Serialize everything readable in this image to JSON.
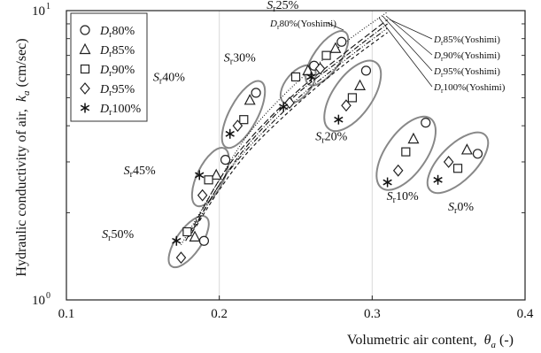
{
  "chart_data": {
    "type": "scatter",
    "xlabel": "Volumetric air content,",
    "xlabel_symbol": "θ",
    "xlabel_sub": "a",
    "xlabel_unit": " (-)",
    "ylabel": "Hydraulic conductivity of air,",
    "ylabel_symbol": "k",
    "ylabel_sub": "a",
    "ylabel_unit": " (cm/sec)",
    "xlim": [
      0.1,
      0.4
    ],
    "ylim": [
      1,
      10
    ],
    "yscale": "log",
    "x_ticks": [
      "0.1",
      "0.2",
      "0.3",
      "0.4"
    ],
    "y_ticks": [
      "10",
      "10"
    ],
    "y_ticks_sup": [
      "0",
      "1"
    ],
    "grid": "vertical",
    "legend_position": "top-left",
    "series": [
      {
        "name": "Dr80%",
        "label_prefix": "D",
        "label_sub": "r",
        "label_suffix": "80%",
        "marker": "circle",
        "points": [
          [
            0.19,
            1.6
          ],
          [
            0.204,
            3.05
          ],
          [
            0.224,
            5.2
          ],
          [
            0.262,
            6.45
          ],
          [
            0.28,
            7.8
          ],
          [
            0.296,
            6.2
          ],
          [
            0.335,
            4.1
          ],
          [
            0.369,
            3.2
          ]
        ]
      },
      {
        "name": "Dr85%",
        "label_prefix": "D",
        "label_sub": "r",
        "label_suffix": "85%",
        "marker": "triangle",
        "points": [
          [
            0.184,
            1.65
          ],
          [
            0.198,
            2.7
          ],
          [
            0.22,
            4.9
          ],
          [
            0.258,
            6.2
          ],
          [
            0.276,
            7.4
          ],
          [
            0.292,
            5.5
          ],
          [
            0.327,
            3.6
          ],
          [
            0.362,
            3.3
          ]
        ]
      },
      {
        "name": "Dr90%",
        "label_prefix": "D",
        "label_sub": "r",
        "label_suffix": "90%",
        "marker": "square",
        "points": [
          [
            0.179,
            1.72
          ],
          [
            0.193,
            2.6
          ],
          [
            0.216,
            4.2
          ],
          [
            0.25,
            5.9
          ],
          [
            0.27,
            7.0
          ],
          [
            0.287,
            5.0
          ],
          [
            0.322,
            3.25
          ],
          [
            0.356,
            2.85
          ]
        ]
      },
      {
        "name": "Dr95%",
        "label_prefix": "D",
        "label_sub": "r",
        "label_suffix": "95%",
        "marker": "diamond",
        "points": [
          [
            0.175,
            1.4
          ],
          [
            0.189,
            2.3
          ],
          [
            0.212,
            4.0
          ],
          [
            0.246,
            4.8
          ],
          [
            0.266,
            6.3
          ],
          [
            0.283,
            4.7
          ],
          [
            0.317,
            2.8
          ],
          [
            0.35,
            3.0
          ]
        ]
      },
      {
        "name": "Dr100%",
        "label_prefix": "D",
        "label_sub": "r",
        "label_suffix": "100%",
        "marker": "asterisk",
        "points": [
          [
            0.172,
            1.6
          ],
          [
            0.187,
            2.7
          ],
          [
            0.207,
            3.75
          ],
          [
            0.242,
            4.65
          ],
          [
            0.26,
            5.9
          ],
          [
            0.278,
            4.2
          ],
          [
            0.31,
            2.55
          ],
          [
            0.343,
            2.6
          ]
        ]
      }
    ],
    "groups": [
      {
        "label": "Sr50%",
        "label_prefix": "S",
        "label_sub": "r",
        "label_suffix": "50%"
      },
      {
        "label": "Sr45%",
        "label_prefix": "S",
        "label_sub": "r",
        "label_suffix": "45%"
      },
      {
        "label": "Sr40%",
        "label_prefix": "S",
        "label_sub": "r",
        "label_suffix": "40%"
      },
      {
        "label": "Sr30%",
        "label_prefix": "S",
        "label_sub": "r",
        "label_suffix": "30%"
      },
      {
        "label": "Sr25%",
        "label_prefix": "S",
        "label_sub": "r",
        "label_suffix": "25%"
      },
      {
        "label": "Sr20%",
        "label_prefix": "S",
        "label_sub": "r",
        "label_suffix": "20%"
      },
      {
        "label": "Sr10%",
        "label_prefix": "S",
        "label_sub": "r",
        "label_suffix": "10%"
      },
      {
        "label": "Sr0%",
        "label_prefix": "S",
        "label_sub": "r",
        "label_suffix": "0%"
      }
    ],
    "yoshimi_curves": [
      {
        "name": "Dr80%(Yoshimi)",
        "label_prefix": "D",
        "label_sub": "r",
        "label_suffix": "80%(Yoshimi)",
        "dash": "1,2",
        "points": [
          [
            0.175,
            1.55
          ],
          [
            0.2,
            2.6
          ],
          [
            0.22,
            3.8
          ],
          [
            0.25,
            5.6
          ],
          [
            0.28,
            7.6
          ],
          [
            0.31,
            9.9
          ]
        ]
      },
      {
        "name": "Dr85%(Yoshimi)",
        "label_prefix": "D",
        "label_sub": "r",
        "label_suffix": "85%(Yoshimi)",
        "dash": "7,3",
        "points": [
          [
            0.178,
            1.6
          ],
          [
            0.2,
            2.6
          ],
          [
            0.22,
            3.6
          ],
          [
            0.25,
            5.2
          ],
          [
            0.28,
            7.0
          ],
          [
            0.31,
            9.3
          ]
        ]
      },
      {
        "name": "Dr90%(Yoshimi)",
        "label_prefix": "D",
        "label_sub": "r",
        "label_suffix": "90%(Yoshimi)",
        "dash": "6,2,1,2",
        "points": [
          [
            0.18,
            1.65
          ],
          [
            0.2,
            2.5
          ],
          [
            0.22,
            3.5
          ],
          [
            0.25,
            5.1
          ],
          [
            0.28,
            6.8
          ],
          [
            0.31,
            9.0
          ]
        ]
      },
      {
        "name": "Dr95%(Yoshimi)",
        "label_prefix": "D",
        "label_sub": "r",
        "label_suffix": "95%(Yoshimi)",
        "dash": "6,2,1,2,1,2",
        "points": [
          [
            0.182,
            1.7
          ],
          [
            0.2,
            2.5
          ],
          [
            0.22,
            3.4
          ],
          [
            0.25,
            4.9
          ],
          [
            0.28,
            6.6
          ],
          [
            0.31,
            8.7
          ]
        ]
      },
      {
        "name": "Dr100%(Yoshimi)",
        "label_prefix": "D",
        "label_sub": "r",
        "label_suffix": "100%(Yoshimi)",
        "dash": "4,3",
        "points": [
          [
            0.185,
            1.8
          ],
          [
            0.2,
            2.4
          ],
          [
            0.22,
            3.3
          ],
          [
            0.25,
            4.7
          ],
          [
            0.28,
            6.4
          ],
          [
            0.31,
            8.4
          ]
        ]
      }
    ]
  }
}
